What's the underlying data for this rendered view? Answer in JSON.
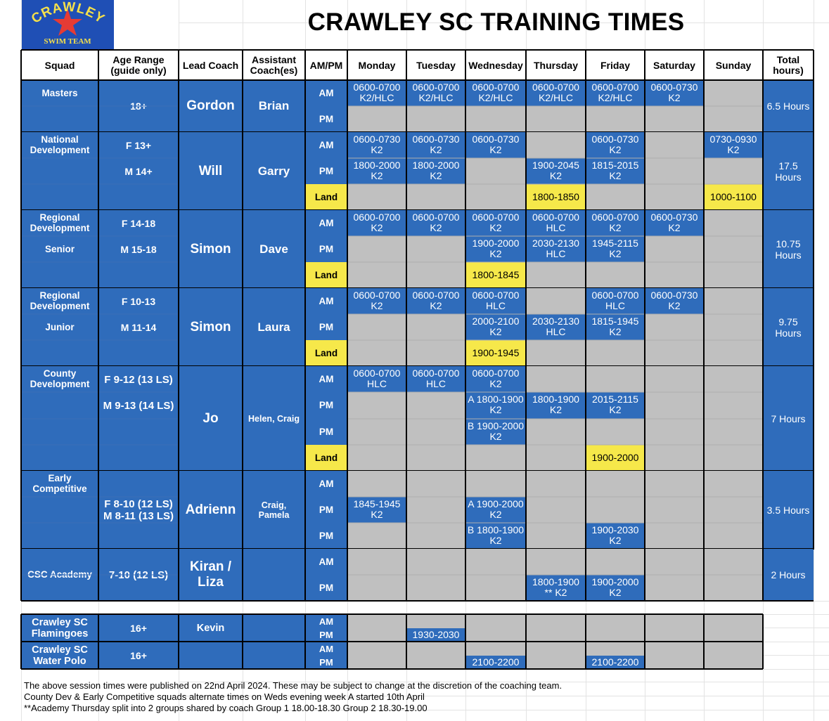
{
  "logo": {
    "top_text": "CRAWLEY",
    "bottom_text": "SWIM TEAM",
    "bg_color": "#1f4fb5",
    "text_color": "#f5e04a",
    "star_color": "#e53b35"
  },
  "title": "CRAWLEY SC TRAINING TIMES",
  "columns": [
    "Squad",
    "Age Range (guide only)",
    "Lead Coach",
    "Assistant Coach(es)",
    "AM/PM",
    "Monday",
    "Tuesday",
    "Wednesday",
    "Thursday",
    "Friday",
    "Saturday",
    "Sunday",
    "Total hours)"
  ],
  "colors": {
    "squad_blue": "#2f6cbb",
    "empty_grey": "#c0c0c0",
    "land_yellow": "#f6e84a"
  },
  "squads": [
    {
      "squad": "Masters",
      "squad2": "",
      "age1": "18+",
      "age2": "",
      "lead": "Gordon",
      "assistant": "Brian",
      "total": "6.5 Hours",
      "rows": [
        {
          "slot": "AM",
          "days": [
            "0600-0700\nK2/HLC",
            "0600-0700\nK2/HLC",
            "0600-0700\nK2/HLC",
            "0600-0700\nK2/HLC",
            "0600-0700\nK2/HLC",
            "0600-0730\nK2",
            ""
          ]
        },
        {
          "slot": "PM",
          "days": [
            "",
            "",
            "",
            "",
            "",
            "",
            ""
          ]
        }
      ]
    },
    {
      "squad": "National Development",
      "squad2": "",
      "age1": "F 13+",
      "age2": "M 14+",
      "lead": "Will",
      "assistant": "Garry",
      "total": "17.5 Hours",
      "rows": [
        {
          "slot": "AM",
          "days": [
            "0600-0730\nK2",
            "0600-0730\nK2",
            "0600-0730\nK2",
            "",
            "0600-0730\nK2",
            "",
            "0730-0930\nK2"
          ]
        },
        {
          "slot": "PM",
          "days": [
            "1800-2000\nK2",
            "1800-2000\nK2",
            "",
            "1900-2045\nK2",
            "1815-2015\nK2",
            "",
            ""
          ]
        },
        {
          "slot": "Land",
          "days": [
            "",
            "",
            "",
            "1800-1850",
            "",
            "",
            "1000-1100"
          ]
        }
      ]
    },
    {
      "squad": "Regional Development",
      "squad2": "Senior",
      "age1": "F 14-18",
      "age2": "M 15-18",
      "lead": "Simon",
      "assistant": "Dave",
      "total": "10.75 Hours",
      "rows": [
        {
          "slot": "AM",
          "days": [
            "0600-0700\nK2",
            "0600-0700\nK2",
            "0600-0700\nK2",
            "0600-0700\nHLC",
            "0600-0700\nK2",
            "0600-0730\nK2",
            ""
          ]
        },
        {
          "slot": "PM",
          "days": [
            "",
            "",
            "1900-2000\nK2",
            "2030-2130\nHLC",
            "1945-2115\nK2",
            "",
            ""
          ]
        },
        {
          "slot": "Land",
          "days": [
            "",
            "",
            "1800-1845",
            "",
            "",
            "",
            ""
          ]
        }
      ]
    },
    {
      "squad": "Regional Development",
      "squad2": "Junior",
      "age1": "F 10-13",
      "age2": "M 11-14",
      "lead": "Simon",
      "assistant": "Laura",
      "total": "9.75 Hours",
      "rows": [
        {
          "slot": "AM",
          "days": [
            "0600-0700\nK2",
            "0600-0700\nK2",
            "0600-0700\nHLC",
            "",
            "0600-0700\nHLC",
            "0600-0730\nK2",
            ""
          ]
        },
        {
          "slot": "PM",
          "days": [
            "",
            "",
            "2000-2100\nK2",
            "2030-2130\nHLC",
            "1815-1945\nK2",
            "",
            ""
          ]
        },
        {
          "slot": "Land",
          "days": [
            "",
            "",
            "1900-1945",
            "",
            "",
            "",
            ""
          ]
        }
      ]
    },
    {
      "squad": "County Development",
      "squad2": "",
      "age1": "F 9-12 (13 LS)",
      "age2": "M 9-13 (14 LS)",
      "lead": "Jo",
      "assistant": "Helen, Craig",
      "total": "7 Hours",
      "rows": [
        {
          "slot": "AM",
          "days": [
            "0600-0700\nHLC",
            "0600-0700\nHLC",
            "0600-0700\nK2",
            "",
            "",
            "",
            ""
          ]
        },
        {
          "slot": "PM",
          "days": [
            "",
            "",
            "A 1800-1900\nK2",
            "1800-1900\nK2",
            "2015-2115\nK2",
            "",
            ""
          ]
        },
        {
          "slot": "PM",
          "days": [
            "",
            "",
            "B 1900-2000\nK2",
            "",
            "",
            "",
            ""
          ]
        },
        {
          "slot": "Land",
          "days": [
            "",
            "",
            "",
            "",
            "1900-2000",
            "",
            ""
          ]
        }
      ]
    },
    {
      "squad": "Early Competitive",
      "squad2": "",
      "age1": "F 8-10 (12 LS)\nM 8-11 (13 LS)",
      "age2": "",
      "lead": "Adrienn",
      "assistant": "Craig,\nPamela",
      "total": "3.5 Hours",
      "rows": [
        {
          "slot": "AM",
          "days": [
            "",
            "",
            "",
            "",
            "",
            "",
            ""
          ]
        },
        {
          "slot": "PM",
          "days": [
            "1845-1945\nK2",
            "",
            "A 1900-2000\nK2",
            "",
            "",
            "",
            ""
          ]
        },
        {
          "slot": "PM",
          "days": [
            "",
            "",
            "B 1800-1900\nK2",
            "",
            "1900-2030\nK2",
            "",
            ""
          ]
        }
      ]
    },
    {
      "squad": "CSC Academy",
      "squad2": "",
      "age1": "7-10 (12 LS)",
      "age2": "",
      "lead": "Kiran /\nLiza",
      "assistant": "",
      "total": "2 Hours",
      "rows": [
        {
          "slot": "AM",
          "days": [
            "",
            "",
            "",
            "",
            "",
            "",
            ""
          ]
        },
        {
          "slot": "PM",
          "days": [
            "",
            "",
            "",
            "1800-1900\n** K2",
            "1900-2000\nK2",
            "",
            ""
          ]
        }
      ]
    }
  ],
  "extra_squads": [
    {
      "squad": "Crawley SC\nFlamingoes",
      "age": "16+",
      "lead": "Kevin",
      "assistant": "",
      "slots": "AM\nPM",
      "days": [
        "",
        "1930-2030",
        "",
        "",
        "",
        "",
        ""
      ]
    },
    {
      "squad": "Crawley SC\nWater Polo",
      "age": "16+",
      "lead": "",
      "assistant": "",
      "slots": "AM\nPM",
      "days": [
        "",
        "",
        "2100-2200",
        "",
        "2100-2200",
        "",
        ""
      ]
    }
  ],
  "notes": [
    "The above session times were published on 22nd April 2024. These may be subject to change at the discretion of the coaching team.",
    "County Dev & Early Competitive squads alternate times on Weds evening week A started 10th April",
    "**Academy Thursday split into 2 groups shared by coach Group 1 18.00-18.30 Group 2 18.30-19.00"
  ]
}
